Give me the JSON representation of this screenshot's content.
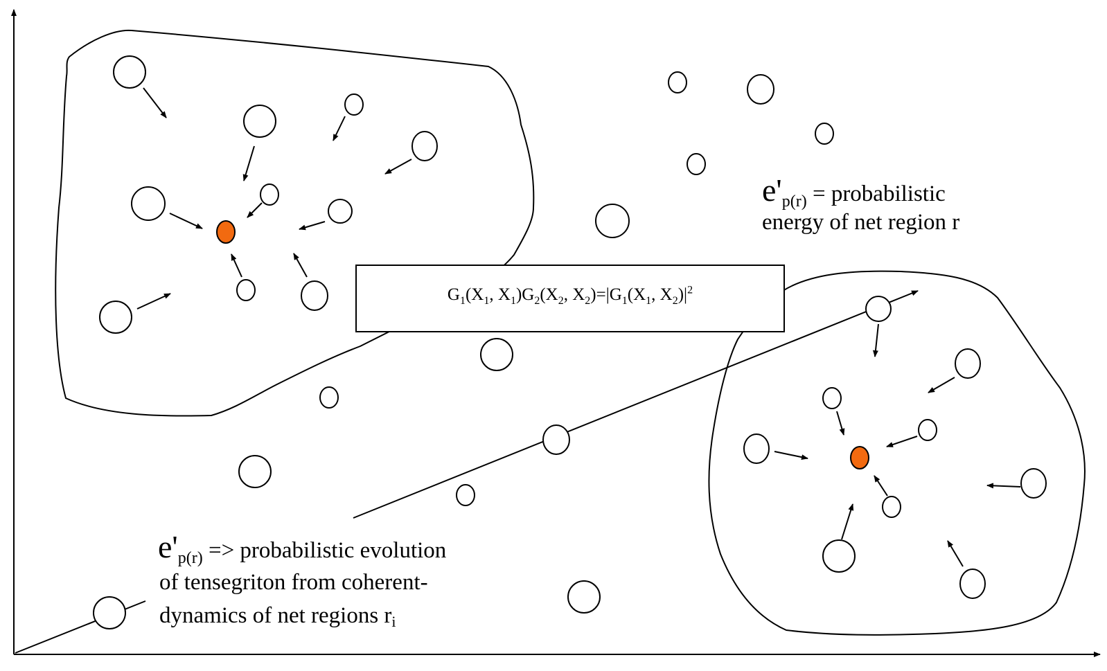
{
  "equation": {
    "g1": "G",
    "i1": "1",
    "a1": "(X",
    "i2": "1",
    "a2": ", X",
    "i3": "1",
    "a3": ")G",
    "i4": "2",
    "a4": "(X",
    "i5": "2",
    "a5": ", X",
    "i6": "2",
    "a6": ")=|G",
    "i7": "1",
    "a7": "(X",
    "i8": "1",
    "a8": ", X",
    "i9": "2",
    "a9": ")|",
    "sup": "2"
  },
  "label_energy": {
    "symbol": "e'",
    "subscript": "p(r)",
    "rest": " = probabilistic",
    "line2": "energy of net region r"
  },
  "label_evolution": {
    "symbol": "e'",
    "subscript": "p(r)",
    "rest": " => probabilistic evolution",
    "line2": "of tensegriton from coherent-",
    "line3_main": "dynamics of net regions r",
    "line3_sub": "i"
  },
  "colors": {
    "attractor": "#f26a10",
    "stroke": "#000000"
  }
}
